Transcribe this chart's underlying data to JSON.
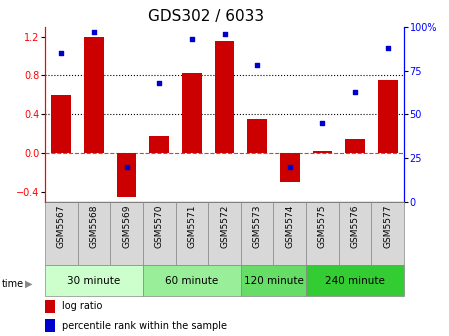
{
  "title": "GDS302 / 6033",
  "samples": [
    "GSM5567",
    "GSM5568",
    "GSM5569",
    "GSM5570",
    "GSM5571",
    "GSM5572",
    "GSM5573",
    "GSM5574",
    "GSM5575",
    "GSM5576",
    "GSM5577"
  ],
  "log_ratio": [
    0.6,
    1.2,
    -0.45,
    0.18,
    0.82,
    1.15,
    0.35,
    -0.3,
    0.02,
    0.15,
    0.75
  ],
  "percentile": [
    85,
    97,
    20,
    68,
    93,
    96,
    78,
    20,
    45,
    63,
    88
  ],
  "groups": [
    {
      "label": "30 minute",
      "start": 0,
      "end": 3,
      "color": "#ccffcc"
    },
    {
      "label": "60 minute",
      "start": 3,
      "end": 6,
      "color": "#99ee99"
    },
    {
      "label": "120 minute",
      "start": 6,
      "end": 8,
      "color": "#66dd66"
    },
    {
      "label": "240 minute",
      "start": 8,
      "end": 11,
      "color": "#33cc33"
    }
  ],
  "bar_color": "#cc0000",
  "dot_color": "#0000cc",
  "ylim_left": [
    -0.5,
    1.3
  ],
  "ylim_right": [
    0,
    100
  ],
  "yticks_left": [
    -0.4,
    0.0,
    0.4,
    0.8,
    1.2
  ],
  "yticks_right": [
    0,
    25,
    50,
    75,
    100
  ],
  "hlines": [
    0.4,
    0.8
  ],
  "zero_line_color": "#cc4444",
  "title_fontsize": 11,
  "tick_fontsize": 7,
  "label_fontsize": 6.5,
  "group_fontsize": 7.5,
  "legend_fontsize": 7
}
